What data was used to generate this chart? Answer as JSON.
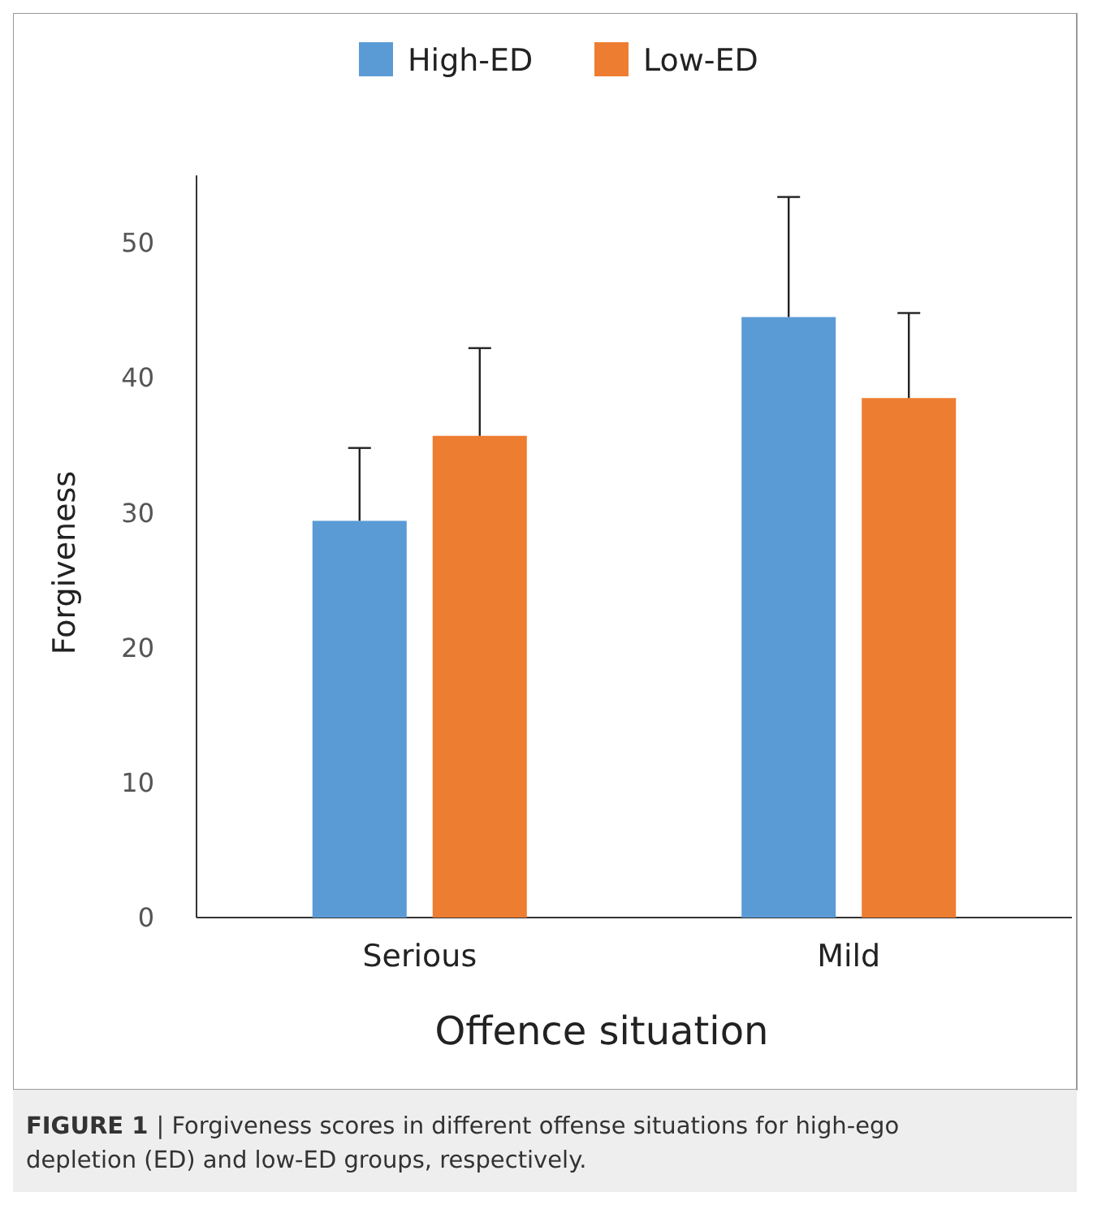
{
  "chart_data": {
    "type": "bar",
    "xlabel": "Offence situation",
    "ylabel": "Forgiveness",
    "categories": [
      "Serious",
      "Mild"
    ],
    "series": [
      {
        "name": "High-ED",
        "color": "#5b9bd5",
        "values": [
          29.4,
          44.5
        ],
        "errors": [
          [
            29.4,
            34.8
          ],
          [
            44.5,
            53.4
          ]
        ]
      },
      {
        "name": "Low-ED",
        "color": "#ed7d31",
        "values": [
          35.7,
          38.5
        ],
        "errors": [
          [
            35.7,
            42.2
          ],
          [
            38.5,
            44.8
          ]
        ]
      }
    ],
    "ylim": [
      0,
      55
    ],
    "yticks": [
      0,
      10,
      20,
      30,
      40,
      50
    ],
    "grid": false,
    "legend": "top",
    "annotations": [
      "FIGURE 1 | Forgiveness scores in different offense situations for high-ego depletion (ED) and low-ED groups, respectively."
    ]
  }
}
